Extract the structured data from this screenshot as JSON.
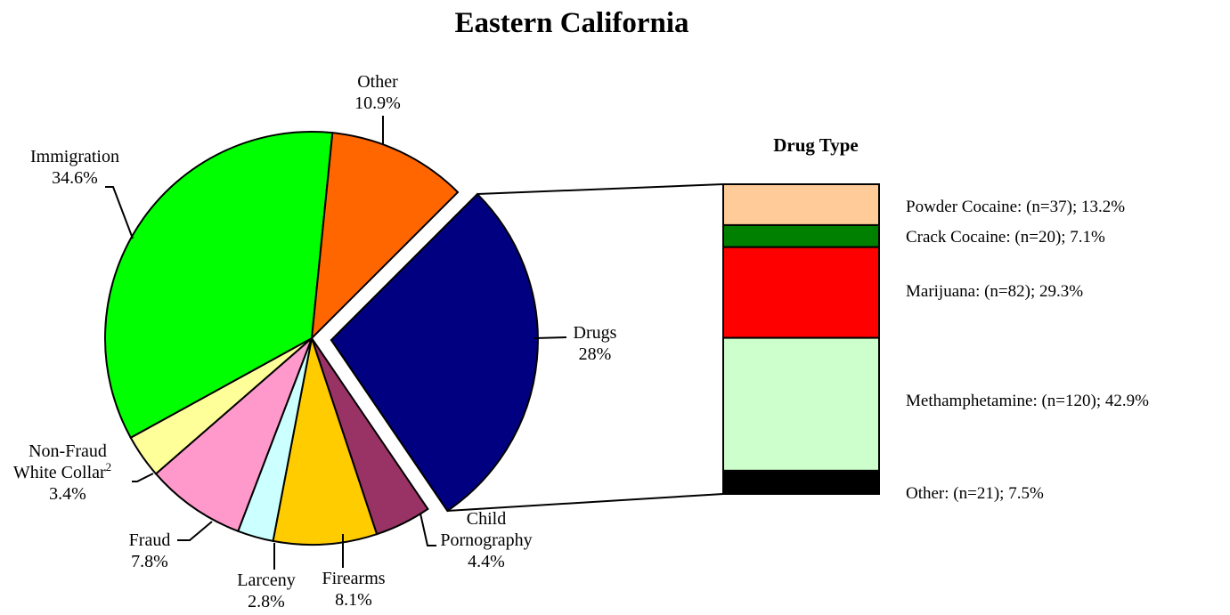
{
  "chart_data": [
    {
      "type": "pie",
      "title": "Eastern California",
      "slices": [
        {
          "name": "Drugs",
          "value": 28,
          "label_lines": [
            "Drugs",
            "28%"
          ],
          "color": "#000080",
          "exploded": true
        },
        {
          "name": "Child Pornography",
          "value": 4.4,
          "label_lines": [
            "Child",
            "Pornography",
            "4.4%"
          ],
          "color": "#993366"
        },
        {
          "name": "Firearms",
          "value": 8.1,
          "label_lines": [
            "Firearms",
            "8.1%"
          ],
          "color": "#FFCC00"
        },
        {
          "name": "Larceny",
          "value": 2.8,
          "label_lines": [
            "Larceny",
            "2.8%"
          ],
          "color": "#CCFFFF"
        },
        {
          "name": "Fraud",
          "value": 7.8,
          "label_lines": [
            "Fraud",
            "7.8%"
          ],
          "color": "#FF99CC"
        },
        {
          "name": "Non-Fraud White Collar",
          "value": 3.4,
          "label_lines": [
            "Non-Fraud",
            "White Collar",
            "3.4%"
          ],
          "superscript": "2",
          "color": "#FFFF99"
        },
        {
          "name": "Immigration",
          "value": 34.6,
          "label_lines": [
            "Immigration",
            "34.6%"
          ],
          "color": "#00FF00"
        },
        {
          "name": "Other",
          "value": 10.9,
          "label_lines": [
            "Other",
            "10.9%"
          ],
          "color": "#FF6600"
        }
      ]
    },
    {
      "type": "bar",
      "stacked": true,
      "title": "Drug Type",
      "segments": [
        {
          "name": "Powder Cocaine",
          "n": 37,
          "percent": 13.2,
          "label": "Powder Cocaine:  (n=37); 13.2%",
          "color": "#FFCC99"
        },
        {
          "name": "Crack Cocaine",
          "n": 20,
          "percent": 7.1,
          "label": "Crack Cocaine:  (n=20); 7.1%",
          "color": "#008000"
        },
        {
          "name": "Marijuana",
          "n": 82,
          "percent": 29.3,
          "label": "Marijuana:  (n=82); 29.3%",
          "color": "#FF0000"
        },
        {
          "name": "Methamphetamine",
          "n": 120,
          "percent": 42.9,
          "label": "Methamphetamine:  (n=120); 42.9%",
          "color": "#CCFFCC"
        },
        {
          "name": "Other",
          "n": 21,
          "percent": 7.5,
          "label": "Other:  (n=21); 7.5%",
          "color": "#000000"
        }
      ]
    }
  ]
}
